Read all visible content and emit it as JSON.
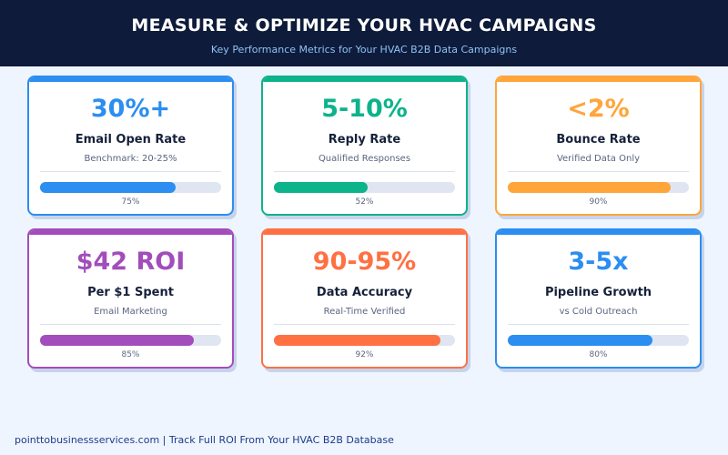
{
  "header": {
    "title": "MEASURE & OPTIMIZE YOUR HVAC CAMPAIGNS",
    "subtitle": "Key Performance Metrics for Your HVAC B2B Data Campaigns"
  },
  "cards": [
    {
      "value": "30%+",
      "label": "Email Open Rate",
      "sub": "Benchmark: 20-25%",
      "progress": 75,
      "progress_label": "75%",
      "color": "#2b8ef0"
    },
    {
      "value": "5-10%",
      "label": "Reply Rate",
      "sub": "Qualified Responses",
      "progress": 52,
      "progress_label": "52%",
      "color": "#0db38a"
    },
    {
      "value": "<2%",
      "label": "Bounce Rate",
      "sub": "Verified Data Only",
      "progress": 90,
      "progress_label": "90%",
      "color": "#ffa53a"
    },
    {
      "value": "$42 ROI",
      "label": "Per $1 Spent",
      "sub": "Email Marketing",
      "progress": 85,
      "progress_label": "85%",
      "color": "#a24dbb"
    },
    {
      "value": "90-95%",
      "label": "Data Accuracy",
      "sub": "Real-Time Verified",
      "progress": 92,
      "progress_label": "92%",
      "color": "#ff7043"
    },
    {
      "value": "3-5x",
      "label": "Pipeline Growth",
      "sub": "vs Cold Outreach",
      "progress": 80,
      "progress_label": "80%",
      "color": "#2b8ef0"
    }
  ],
  "footer": {
    "text": "pointtobusinessservices.com  |  Track Full ROI From Your HVAC B2B Database"
  }
}
